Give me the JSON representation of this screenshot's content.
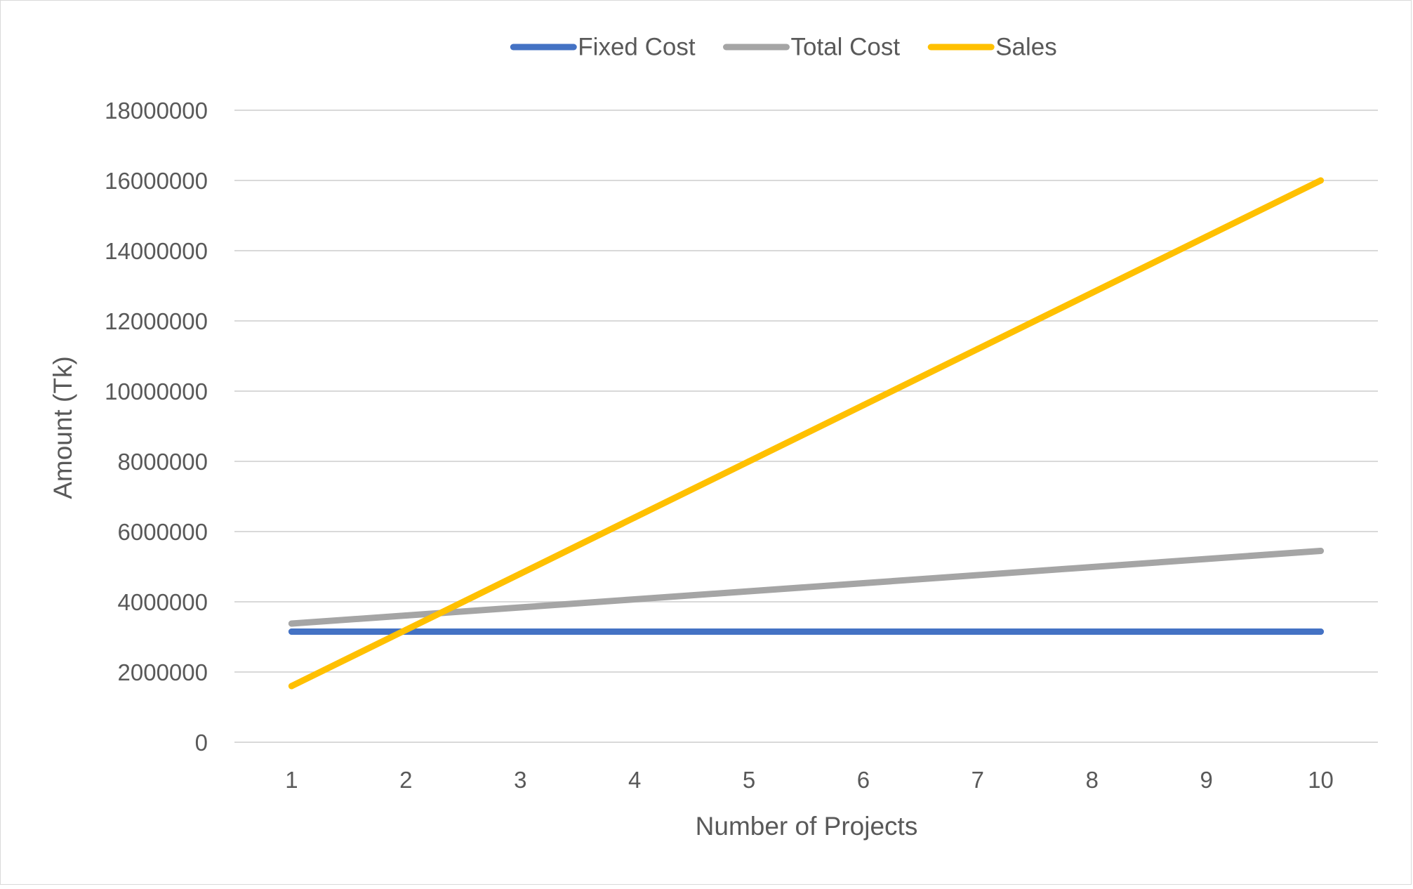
{
  "chart_data": {
    "type": "line",
    "title": "",
    "xlabel": "Number of Projects",
    "ylabel": "Amount (Tk)",
    "categories": [
      "1",
      "2",
      "3",
      "4",
      "5",
      "6",
      "7",
      "8",
      "9",
      "10"
    ],
    "ylim": [
      0,
      18000000
    ],
    "yticks": [
      "0",
      "2000000",
      "4000000",
      "6000000",
      "8000000",
      "10000000",
      "12000000",
      "14000000",
      "16000000",
      "18000000"
    ],
    "grid": "horizontal",
    "legend_position": "top",
    "series": [
      {
        "name": "Fixed Cost",
        "color": "#4472c4",
        "values": [
          3150000,
          3150000,
          3150000,
          3150000,
          3150000,
          3150000,
          3150000,
          3150000,
          3150000,
          3150000
        ]
      },
      {
        "name": "Total Cost",
        "color": "#a5a5a5",
        "values": [
          3380000,
          3610000,
          3840000,
          4070000,
          4300000,
          4530000,
          4760000,
          4990000,
          5220000,
          5450000
        ]
      },
      {
        "name": "Sales",
        "color": "#ffc000",
        "values": [
          1600000,
          3200000,
          4800000,
          6400000,
          8000000,
          9600000,
          11200000,
          12800000,
          14400000,
          16000000
        ]
      }
    ]
  }
}
